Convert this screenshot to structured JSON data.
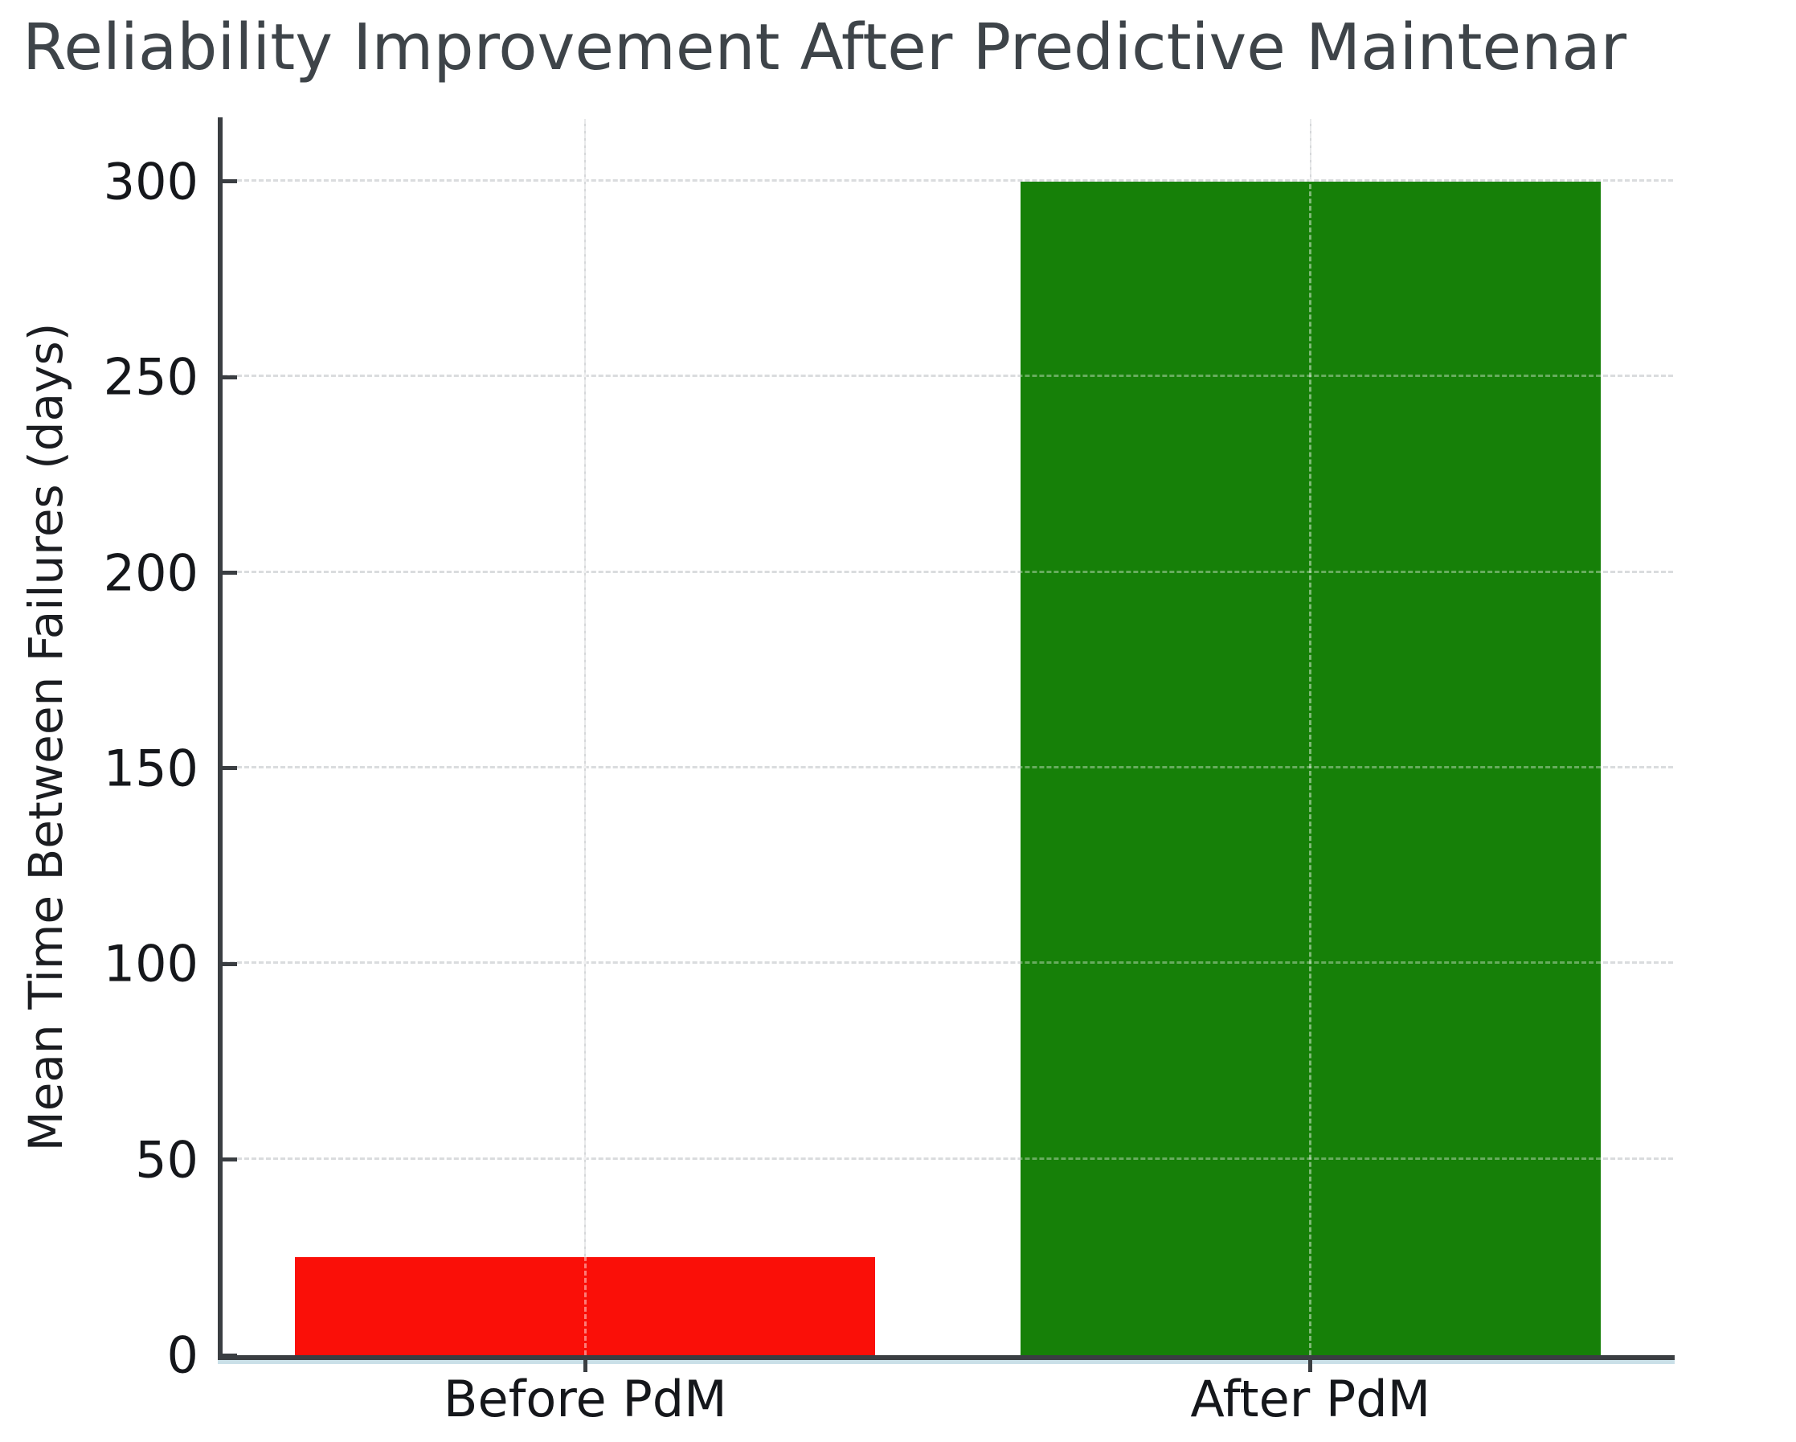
{
  "chart_data": {
    "type": "bar",
    "title": "Reliability Improvement After Predictive Maintenar",
    "title_note": "title text clipped at right edge of image",
    "ylabel": "Mean Time Between Failures (days)",
    "xlabel": "",
    "categories": [
      "Before PdM",
      "After PdM"
    ],
    "values": [
      25,
      300
    ],
    "bar_colors": [
      "#fa0f08",
      "#168008"
    ],
    "yticks": [
      0,
      50,
      100,
      150,
      200,
      250,
      300
    ],
    "ylim": [
      0,
      316
    ],
    "bar_width_fraction": 0.8,
    "grid": {
      "horizontal": "dashed",
      "vertical_category_lines": true,
      "gridlines_visible_over_bars": true
    },
    "legend_position": "none"
  },
  "colors": {
    "background": "#ffffff",
    "grid": "#c7c9cc",
    "grid_overlay": "rgba(255,255,255,0.35)",
    "spine": "#3a3e42",
    "axis_glow": "#9ec7d6",
    "title_text": "#3e4449",
    "tick_label_text": "#15171b"
  }
}
